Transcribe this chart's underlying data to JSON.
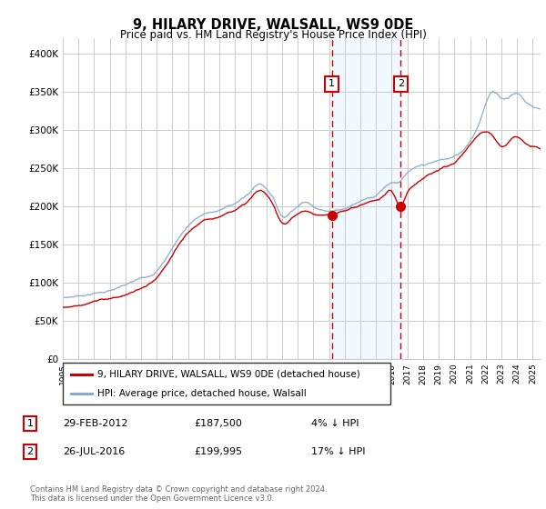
{
  "title": "9, HILARY DRIVE, WALSALL, WS9 0DE",
  "subtitle": "Price paid vs. HM Land Registry's House Price Index (HPI)",
  "ylabel_ticks": [
    "£0",
    "£50K",
    "£100K",
    "£150K",
    "£200K",
    "£250K",
    "£300K",
    "£350K",
    "£400K"
  ],
  "ytick_values": [
    0,
    50000,
    100000,
    150000,
    200000,
    250000,
    300000,
    350000,
    400000
  ],
  "ylim": [
    0,
    420000
  ],
  "xlim_start": 1995.0,
  "xlim_end": 2025.5,
  "sale1_date": 2012.17,
  "sale1_price": 187500,
  "sale1_label": "1",
  "sale2_date": 2016.58,
  "sale2_price": 199995,
  "sale2_label": "2",
  "legend_line1": "9, HILARY DRIVE, WALSALL, WS9 0DE (detached house)",
  "legend_line2": "HPI: Average price, detached house, Walsall",
  "footer": "Contains HM Land Registry data © Crown copyright and database right 2024.\nThis data is licensed under the Open Government Licence v3.0.",
  "line_color_property": "#cc0000",
  "line_color_hpi": "#88aacc",
  "shaded_color": "#ddeeff",
  "grid_color": "#cccccc",
  "background_color": "#ffffff",
  "hpi_keypoints": [
    [
      1995.0,
      73000
    ],
    [
      1996.0,
      76000
    ],
    [
      1997.0,
      80000
    ],
    [
      1998.0,
      84000
    ],
    [
      1999.0,
      90000
    ],
    [
      2000.0,
      98000
    ],
    [
      2001.0,
      110000
    ],
    [
      2002.0,
      140000
    ],
    [
      2003.0,
      170000
    ],
    [
      2004.0,
      185000
    ],
    [
      2005.0,
      190000
    ],
    [
      2006.0,
      200000
    ],
    [
      2007.0,
      215000
    ],
    [
      2007.5,
      225000
    ],
    [
      2008.0,
      220000
    ],
    [
      2008.5,
      205000
    ],
    [
      2009.0,
      185000
    ],
    [
      2009.5,
      190000
    ],
    [
      2010.0,
      200000
    ],
    [
      2010.5,
      205000
    ],
    [
      2011.0,
      200000
    ],
    [
      2011.5,
      198000
    ],
    [
      2012.0,
      195000
    ],
    [
      2012.5,
      198000
    ],
    [
      2013.0,
      200000
    ],
    [
      2013.5,
      205000
    ],
    [
      2014.0,
      210000
    ],
    [
      2014.5,
      215000
    ],
    [
      2015.0,
      220000
    ],
    [
      2015.5,
      230000
    ],
    [
      2016.0,
      238000
    ],
    [
      2016.5,
      240000
    ],
    [
      2017.0,
      250000
    ],
    [
      2017.5,
      255000
    ],
    [
      2018.0,
      258000
    ],
    [
      2018.5,
      260000
    ],
    [
      2019.0,
      263000
    ],
    [
      2019.5,
      265000
    ],
    [
      2020.0,
      268000
    ],
    [
      2020.5,
      275000
    ],
    [
      2021.0,
      290000
    ],
    [
      2021.5,
      310000
    ],
    [
      2022.0,
      340000
    ],
    [
      2022.5,
      355000
    ],
    [
      2023.0,
      348000
    ],
    [
      2023.5,
      350000
    ],
    [
      2024.0,
      355000
    ],
    [
      2024.5,
      345000
    ],
    [
      2025.0,
      338000
    ],
    [
      2025.5,
      335000
    ]
  ],
  "prop_keypoints": [
    [
      1995.0,
      70000
    ],
    [
      1996.0,
      73000
    ],
    [
      1997.0,
      78000
    ],
    [
      1998.0,
      82000
    ],
    [
      1999.0,
      87000
    ],
    [
      2000.0,
      95000
    ],
    [
      2001.0,
      107000
    ],
    [
      2002.0,
      135000
    ],
    [
      2003.0,
      163000
    ],
    [
      2004.0,
      178000
    ],
    [
      2005.0,
      185000
    ],
    [
      2006.0,
      196000
    ],
    [
      2007.0,
      210000
    ],
    [
      2007.5,
      220000
    ],
    [
      2008.0,
      214000
    ],
    [
      2008.5,
      197000
    ],
    [
      2009.0,
      178000
    ],
    [
      2009.5,
      182000
    ],
    [
      2010.0,
      190000
    ],
    [
      2010.5,
      194000
    ],
    [
      2011.0,
      190000
    ],
    [
      2011.5,
      188000
    ],
    [
      2012.17,
      187500
    ],
    [
      2012.5,
      189000
    ],
    [
      2013.0,
      192000
    ],
    [
      2013.5,
      196000
    ],
    [
      2014.0,
      200000
    ],
    [
      2014.5,
      204000
    ],
    [
      2015.0,
      207000
    ],
    [
      2015.5,
      213000
    ],
    [
      2016.0,
      218000
    ],
    [
      2016.58,
      199995
    ],
    [
      2017.0,
      218000
    ],
    [
      2017.5,
      230000
    ],
    [
      2018.0,
      238000
    ],
    [
      2018.5,
      243000
    ],
    [
      2019.0,
      247000
    ],
    [
      2019.5,
      252000
    ],
    [
      2020.0,
      256000
    ],
    [
      2020.5,
      265000
    ],
    [
      2021.0,
      278000
    ],
    [
      2021.5,
      290000
    ],
    [
      2022.0,
      295000
    ],
    [
      2022.5,
      290000
    ],
    [
      2023.0,
      278000
    ],
    [
      2023.5,
      285000
    ],
    [
      2024.0,
      292000
    ],
    [
      2024.5,
      283000
    ],
    [
      2025.0,
      278000
    ],
    [
      2025.5,
      275000
    ]
  ]
}
